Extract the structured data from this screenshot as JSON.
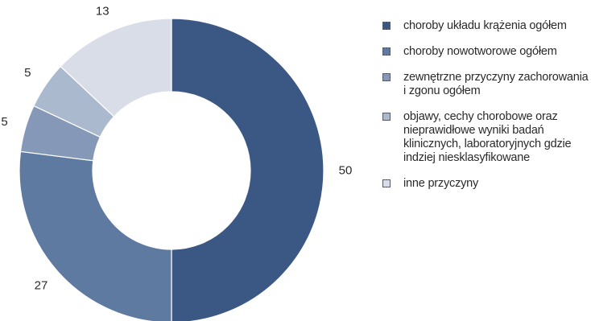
{
  "chart_data": {
    "type": "pie",
    "variant": "donut",
    "title": "",
    "categories": [
      "choroby układu krążenia ogółem",
      "choroby nowotworowe ogółem",
      "zewnętrzne przyczyny zachorowania i zgonu ogółem",
      "objawy, cechy chorobowe oraz nieprawidłowe wyniki badań klinicznych, laboratoryjnych gdzie indziej niesklasyfikowane",
      "inne przyczyny"
    ],
    "values": [
      50,
      27,
      5,
      5,
      13
    ],
    "labels": [
      "50",
      "27",
      "5",
      "5",
      "13"
    ],
    "colors": [
      "#3b5884",
      "#5f7aa0",
      "#8598b7",
      "#abb9ce",
      "#d8dde7"
    ],
    "legend_position": "right"
  }
}
